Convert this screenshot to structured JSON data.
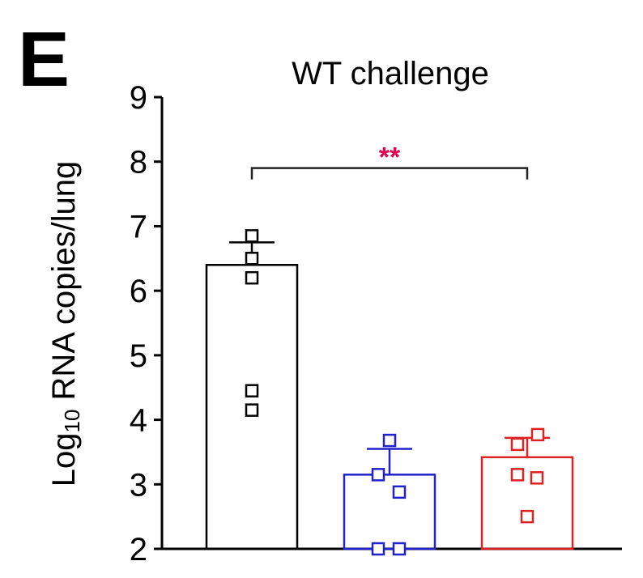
{
  "panel_label": "E",
  "chart_data": {
    "type": "bar",
    "title": "WT challenge",
    "ylabel_main": "Log",
    "ylabel_sub": "10",
    "ylabel_rest": " RNA copies/lung",
    "ylim": [
      2,
      9
    ],
    "yticks": [
      2,
      3,
      4,
      5,
      6,
      7,
      8,
      9
    ],
    "series": [
      {
        "color": "#000000",
        "mean": 6.4,
        "sem_upper": 6.75,
        "points": [
          6.85,
          6.5,
          6.2,
          4.45,
          4.15
        ]
      },
      {
        "color": "#2222cc",
        "mean": 3.15,
        "sem_upper": 3.55,
        "points": [
          3.68,
          3.15,
          2.88,
          2.0,
          2.0
        ]
      },
      {
        "color": "#dd2222",
        "mean": 3.42,
        "sem_upper": 3.72,
        "points": [
          3.77,
          3.62,
          3.15,
          3.1,
          2.5
        ]
      }
    ],
    "significance": {
      "label": "**",
      "from": 0,
      "to": 2,
      "y": 7.9,
      "color": "#e0004d",
      "line_color": "#222222"
    }
  }
}
